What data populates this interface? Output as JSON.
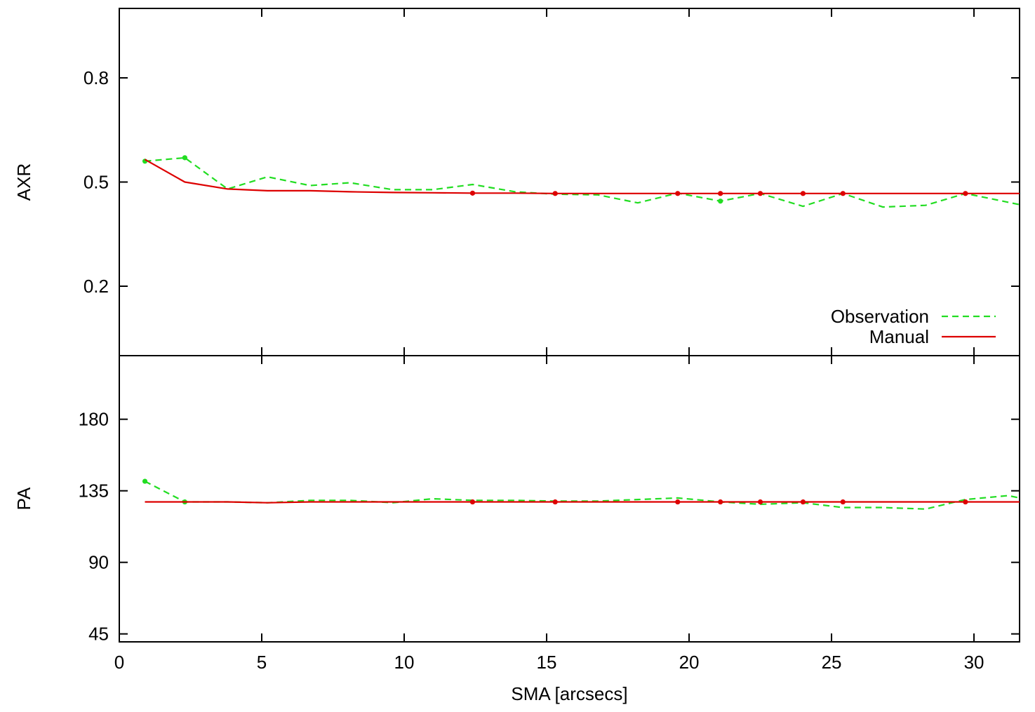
{
  "chart_data": [
    {
      "type": "line",
      "ylabel": "AXR",
      "xlabel": "",
      "xlim": [
        0,
        31.6
      ],
      "ylim": [
        0,
        1
      ],
      "xticks": [
        0,
        5,
        10,
        15,
        20,
        25,
        30
      ],
      "yticks": [
        0.2,
        0.5,
        0.8
      ],
      "ytick_labels": [
        "0.2",
        "0.5",
        "0.8"
      ],
      "grid": false,
      "legend_position": "bottom-right",
      "series": [
        {
          "name": "Observation",
          "color": "#22dd22",
          "dash": "dashed",
          "x": [
            0.9,
            2.3,
            3.8,
            5.2,
            6.7,
            8.1,
            9.6,
            11.0,
            12.4,
            13.9,
            15.3,
            16.8,
            18.2,
            19.6,
            21.1,
            22.5,
            24.0,
            25.4,
            26.8,
            28.3,
            29.7,
            31.6
          ],
          "y": [
            0.56,
            0.57,
            0.48,
            0.515,
            0.49,
            0.498,
            0.478,
            0.478,
            0.493,
            0.472,
            0.465,
            0.463,
            0.44,
            0.468,
            0.445,
            0.467,
            0.43,
            0.467,
            0.428,
            0.433,
            0.467,
            0.435
          ],
          "markers_x": [
            0.9,
            2.3,
            21.1
          ],
          "markers_y": [
            0.56,
            0.57,
            0.445
          ]
        },
        {
          "name": "Manual",
          "color": "#dd0000",
          "dash": "solid",
          "x": [
            0.9,
            2.3,
            3.8,
            5.2,
            6.7,
            8.1,
            9.6,
            11.0,
            12.4,
            13.9,
            15.3,
            31.6
          ],
          "y": [
            0.565,
            0.5,
            0.48,
            0.475,
            0.475,
            0.472,
            0.47,
            0.469,
            0.468,
            0.468,
            0.467,
            0.467
          ],
          "markers_x": [
            12.4,
            15.3,
            19.6,
            21.1,
            22.5,
            24.0,
            25.4,
            29.7
          ],
          "markers_y": [
            0.468,
            0.467,
            0.467,
            0.467,
            0.467,
            0.467,
            0.467,
            0.467
          ]
        }
      ]
    },
    {
      "type": "line",
      "ylabel": "PA",
      "xlabel": "SMA [arcsecs]",
      "xlim": [
        0,
        31.6
      ],
      "ylim": [
        40,
        220
      ],
      "xticks": [
        0,
        5,
        10,
        15,
        20,
        25,
        30
      ],
      "xtick_labels": [
        "0",
        "5",
        "10",
        "15",
        "20",
        "25",
        "30"
      ],
      "yticks": [
        45,
        90,
        135,
        180
      ],
      "ytick_labels": [
        "45",
        "90",
        "135",
        "180"
      ],
      "grid": false,
      "series": [
        {
          "color": "#22dd22",
          "dash": "dashed",
          "x": [
            0.9,
            2.3,
            3.8,
            5.2,
            6.7,
            8.1,
            9.6,
            11.0,
            12.4,
            13.9,
            15.3,
            16.8,
            18.2,
            19.6,
            21.1,
            22.5,
            24.0,
            25.4,
            26.8,
            28.3,
            29.7,
            31.2,
            31.6
          ],
          "y": [
            141,
            128,
            128,
            127.5,
            129,
            129,
            127.5,
            130,
            129,
            129,
            128.5,
            128.5,
            129.5,
            130.5,
            128,
            126.5,
            127.5,
            124.5,
            124.5,
            123.5,
            129.5,
            132,
            130.5
          ],
          "markers_x": [
            0.9,
            2.3
          ],
          "markers_y": [
            141,
            128
          ]
        },
        {
          "color": "#dd0000",
          "dash": "solid",
          "x": [
            0.9,
            2.3,
            3.8,
            5.2,
            6.7,
            8.1,
            9.6,
            11.0,
            12.4,
            31.6
          ],
          "y": [
            128,
            128,
            128,
            127.5,
            128,
            128,
            128,
            128,
            128,
            128
          ],
          "markers_x": [
            12.4,
            15.3,
            19.6,
            21.1,
            22.5,
            24.0,
            25.4,
            29.7
          ],
          "markers_y": [
            128,
            128,
            128,
            128,
            128,
            128,
            128,
            128
          ]
        }
      ]
    }
  ]
}
